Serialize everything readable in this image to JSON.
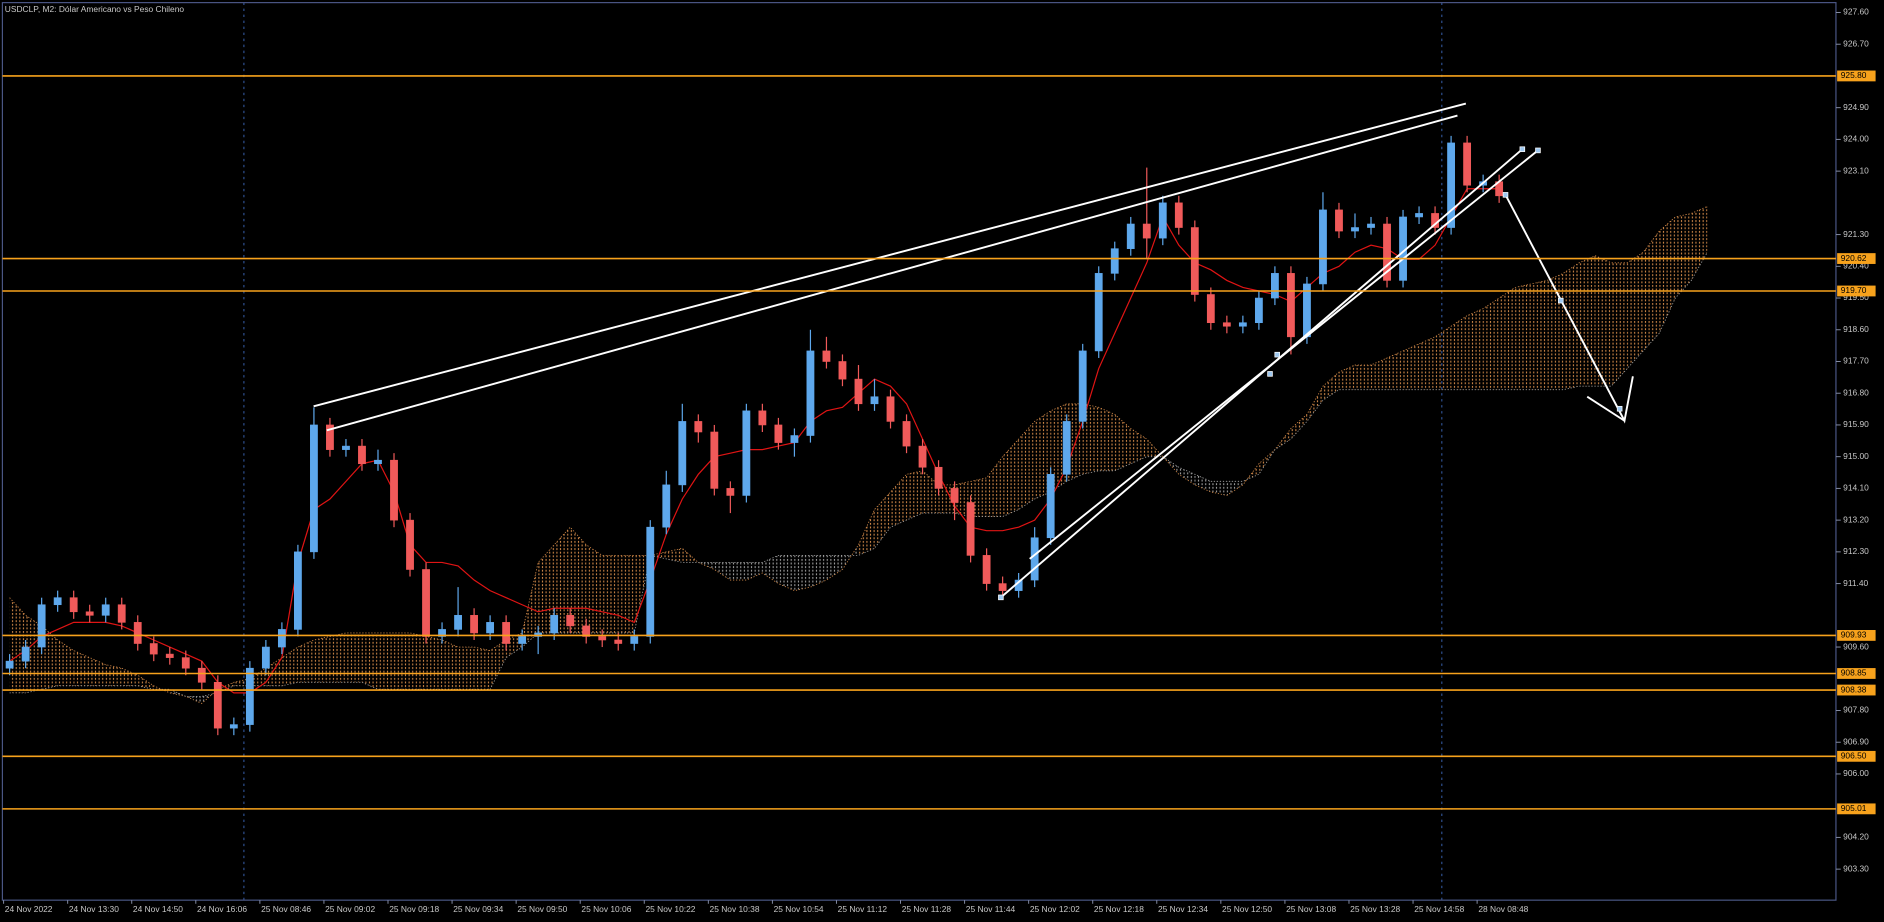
{
  "chart_data": {
    "type": "candlestick",
    "title": "USDCLP, M2:  Dólar Americano vs Peso Chileno",
    "categories": [
      "24 Nov 2022",
      null,
      null,
      null,
      "24 Nov 13:30",
      null,
      null,
      null,
      "24 Nov 14:50",
      null,
      null,
      null,
      "24 Nov 16:06",
      null,
      null,
      null,
      "25 Nov 08:46",
      null,
      null,
      null,
      "25 Nov 09:02",
      null,
      null,
      null,
      "25 Nov 09:18",
      null,
      null,
      null,
      "25 Nov 09:34",
      null,
      null,
      null,
      "25 Nov 09:50",
      null,
      null,
      null,
      "25 Nov 10:06",
      null,
      null,
      null,
      "25 Nov 10:22",
      null,
      null,
      null,
      "25 Nov 10:38",
      null,
      null,
      null,
      "25 Nov 10:54",
      null,
      null,
      null,
      "25 Nov 11:12",
      null,
      null,
      null,
      "25 Nov 11:28",
      null,
      null,
      null,
      "25 Nov 11:44",
      null,
      null,
      null,
      "25 Nov 12:02",
      null,
      null,
      null,
      "25 Nov 12:18",
      null,
      null,
      null,
      "25 Nov 12:34",
      null,
      null,
      null,
      "25 Nov 12:50",
      null,
      null,
      null,
      "25 Nov 13:08",
      null,
      null,
      null,
      "25 Nov 13:28",
      null,
      null,
      null,
      "25 Nov 14:58",
      null,
      null,
      null,
      "28 Nov 08:48",
      null
    ],
    "open": [
      909.0,
      909.2,
      909.6,
      910.8,
      911.0,
      910.6,
      910.5,
      910.8,
      910.3,
      909.7,
      909.4,
      909.3,
      909.0,
      908.6,
      907.3,
      907.4,
      909.0,
      909.6,
      910.1,
      912.3,
      915.9,
      915.2,
      915.3,
      914.8,
      914.9,
      913.2,
      911.8,
      909.9,
      910.1,
      910.5,
      910.0,
      910.3,
      909.7,
      909.9,
      910.0,
      910.5,
      910.2,
      909.9,
      909.8,
      909.7,
      909.9,
      913.0,
      914.2,
      916.0,
      915.7,
      914.1,
      913.9,
      916.3,
      915.9,
      915.4,
      915.6,
      918.0,
      917.7,
      917.2,
      916.5,
      916.7,
      916.0,
      915.3,
      914.7,
      914.1,
      913.7,
      912.2,
      911.4,
      911.2,
      911.5,
      912.7,
      914.5,
      916.0,
      918.0,
      920.2,
      920.9,
      921.6,
      921.2,
      922.2,
      921.5,
      919.6,
      918.8,
      918.7,
      918.8,
      919.5,
      920.2,
      918.4,
      919.9,
      922.0,
      921.4,
      921.5,
      921.6,
      920.0,
      921.8,
      921.9,
      921.5,
      923.9,
      922.7,
      922.8
    ],
    "high": [
      909.4,
      909.8,
      911.0,
      911.2,
      911.2,
      910.8,
      911.0,
      911.0,
      910.5,
      909.9,
      909.6,
      909.5,
      909.2,
      908.8,
      907.6,
      909.2,
      909.8,
      910.3,
      912.5,
      916.4,
      916.1,
      915.5,
      915.5,
      915.2,
      915.1,
      913.4,
      912.0,
      910.3,
      911.3,
      910.7,
      910.5,
      910.5,
      910.1,
      910.2,
      910.7,
      910.7,
      910.4,
      910.1,
      910.0,
      910.1,
      913.2,
      914.6,
      916.5,
      916.2,
      915.9,
      914.3,
      916.5,
      916.5,
      916.1,
      915.8,
      918.6,
      918.4,
      917.9,
      917.6,
      917.2,
      916.9,
      916.2,
      915.5,
      914.9,
      914.3,
      913.9,
      912.4,
      911.6,
      911.7,
      913.0,
      914.7,
      916.2,
      918.2,
      920.4,
      921.1,
      921.8,
      923.2,
      922.4,
      922.4,
      921.7,
      919.8,
      919.0,
      919.0,
      919.7,
      920.4,
      920.4,
      920.1,
      922.5,
      922.2,
      921.9,
      921.8,
      921.8,
      922.0,
      922.1,
      922.1,
      924.1,
      924.1,
      923.0,
      923.0
    ],
    "low": [
      908.8,
      909.0,
      909.4,
      910.6,
      910.4,
      910.3,
      910.3,
      910.1,
      909.5,
      909.2,
      909.1,
      908.8,
      908.4,
      907.1,
      907.1,
      907.2,
      908.8,
      909.4,
      909.9,
      912.1,
      915.0,
      915.0,
      914.6,
      914.6,
      913.0,
      911.6,
      909.7,
      909.7,
      909.9,
      909.8,
      909.8,
      909.5,
      909.5,
      909.4,
      909.8,
      910.0,
      909.7,
      909.6,
      909.5,
      909.5,
      909.7,
      912.8,
      914.0,
      915.4,
      913.9,
      913.4,
      913.7,
      915.7,
      915.2,
      915.0,
      915.4,
      917.5,
      917.0,
      916.3,
      916.3,
      915.8,
      915.1,
      914.5,
      913.9,
      913.2,
      912.0,
      911.2,
      911.0,
      911.0,
      911.3,
      912.5,
      914.3,
      915.8,
      917.8,
      920.0,
      920.7,
      920.6,
      921.0,
      921.3,
      919.4,
      918.6,
      918.5,
      918.5,
      918.6,
      919.3,
      917.9,
      918.2,
      919.7,
      921.2,
      921.2,
      921.3,
      919.8,
      919.8,
      921.6,
      921.3,
      921.3,
      922.5,
      922.5,
      922.2
    ],
    "close": [
      909.2,
      909.6,
      910.8,
      911.0,
      910.6,
      910.5,
      910.8,
      910.3,
      909.7,
      909.4,
      909.3,
      909.0,
      908.6,
      907.3,
      907.4,
      909.0,
      909.6,
      910.1,
      912.3,
      915.9,
      915.2,
      915.3,
      914.8,
      914.9,
      913.2,
      911.8,
      909.9,
      910.1,
      910.5,
      910.0,
      910.3,
      909.7,
      909.9,
      910.0,
      910.5,
      910.2,
      909.9,
      909.8,
      909.7,
      909.9,
      913.0,
      914.2,
      916.0,
      915.7,
      914.1,
      913.9,
      916.3,
      915.9,
      915.4,
      915.6,
      918.0,
      917.7,
      917.2,
      916.5,
      916.7,
      916.0,
      915.3,
      914.7,
      914.1,
      913.7,
      912.2,
      911.4,
      911.2,
      911.5,
      912.7,
      914.5,
      916.0,
      918.0,
      920.2,
      920.9,
      921.6,
      921.2,
      922.2,
      921.5,
      919.6,
      918.8,
      918.7,
      918.8,
      919.5,
      920.2,
      918.4,
      919.9,
      922.0,
      921.4,
      921.5,
      921.6,
      920.0,
      921.8,
      921.9,
      921.5,
      923.9,
      922.7,
      922.8,
      922.4
    ],
    "kijun": [
      909.2,
      909.5,
      909.9,
      910.1,
      910.3,
      910.3,
      910.3,
      910.2,
      910.0,
      909.8,
      909.6,
      909.4,
      909.2,
      908.6,
      908.3,
      908.3,
      908.6,
      909.3,
      912.0,
      913.5,
      913.8,
      914.3,
      914.8,
      914.9,
      914.0,
      912.5,
      912.0,
      912.0,
      911.9,
      911.5,
      911.2,
      911.0,
      910.8,
      910.6,
      910.7,
      910.7,
      910.7,
      910.6,
      910.5,
      910.3,
      911.5,
      912.8,
      913.8,
      914.5,
      915.0,
      915.1,
      915.2,
      915.2,
      915.3,
      915.4,
      916.0,
      916.3,
      916.4,
      916.8,
      917.2,
      917.0,
      916.5,
      915.5,
      914.5,
      913.6,
      913.0,
      912.9,
      912.9,
      913.0,
      913.2,
      913.8,
      914.7,
      916.0,
      917.5,
      918.5,
      919.5,
      920.5,
      921.8,
      921.0,
      920.5,
      920.3,
      920.0,
      919.8,
      919.7,
      919.6,
      919.4,
      919.8,
      920.2,
      920.4,
      920.8,
      921.0,
      920.9,
      920.6,
      920.6,
      921.0,
      921.8,
      922.6,
      922.6,
      922.6
    ],
    "cloud_a": [
      911.0,
      910.5,
      910.2,
      909.8,
      909.5,
      909.3,
      909.1,
      909.0,
      908.8,
      908.5,
      908.3,
      908.2,
      908.0,
      908.4,
      908.6,
      908.7,
      909.0,
      909.3,
      909.6,
      909.8,
      909.9,
      910.0,
      910.0,
      910.0,
      910.0,
      910.0,
      909.9,
      909.8,
      909.6,
      909.6,
      909.5,
      909.8,
      910.0,
      912.0,
      912.5,
      913.0,
      912.5,
      912.2,
      912.2,
      912.2,
      912.2,
      912.3,
      912.4,
      912.0,
      911.8,
      911.5,
      911.5,
      911.7,
      911.4,
      911.2,
      911.3,
      911.5,
      911.8,
      912.5,
      913.5,
      914.0,
      914.5,
      914.6,
      914.2,
      914.2,
      914.3,
      914.4,
      915.0,
      915.5,
      916.0,
      916.3,
      916.5,
      916.5,
      916.4,
      916.2,
      915.8,
      915.5,
      915.0,
      914.5,
      914.2,
      914.0,
      913.9,
      914.2,
      914.8,
      915.2,
      915.8,
      916.2,
      917.0,
      917.4,
      917.6,
      917.6,
      917.8,
      918.0,
      918.2,
      918.4,
      918.7,
      919.0,
      919.2,
      919.5,
      919.8,
      919.9,
      920.0,
      920.2,
      920.5,
      920.7,
      920.5,
      920.5,
      920.8,
      921.4,
      921.8,
      921.9,
      922.1
    ],
    "cloud_b": [
      908.3,
      908.3,
      908.4,
      908.5,
      908.5,
      908.5,
      908.5,
      908.5,
      908.5,
      908.4,
      908.4,
      908.2,
      908.2,
      908.3,
      908.5,
      908.5,
      908.5,
      908.5,
      908.6,
      908.6,
      908.6,
      908.6,
      908.6,
      908.4,
      908.4,
      908.4,
      908.4,
      908.4,
      908.4,
      908.4,
      908.4,
      909.3,
      909.6,
      910.0,
      910.0,
      910.0,
      910.0,
      910.0,
      910.0,
      910.0,
      912.2,
      912.1,
      912.0,
      912.0,
      912.0,
      912.0,
      912.0,
      912.0,
      912.2,
      912.2,
      912.2,
      912.2,
      912.2,
      912.2,
      912.4,
      913.0,
      913.2,
      913.4,
      913.4,
      913.4,
      913.3,
      913.3,
      913.3,
      913.5,
      913.8,
      914.0,
      914.3,
      914.5,
      914.6,
      914.6,
      914.8,
      915.0,
      915.0,
      914.7,
      914.5,
      914.3,
      914.3,
      914.3,
      914.5,
      915.2,
      915.5,
      916.0,
      916.6,
      916.9,
      916.9,
      916.9,
      916.9,
      916.9,
      916.9,
      916.9,
      916.9,
      916.9,
      916.9,
      916.9,
      916.9,
      916.9,
      916.9,
      916.9,
      917.0,
      917.0,
      917.0,
      917.5,
      918.0,
      918.5,
      919.5,
      920.0,
      920.8
    ],
    "up_color": "#5ea8ec",
    "down_color": "#f05a5a",
    "doji_color": "#ffffff",
    "kijun_color": "#e01414",
    "cloud_up_color": "#d08848",
    "cloud_down_color": "#a0a0a0",
    "level_color": "#f7a21c",
    "levels": [
      {
        "value": 925.8,
        "label": "925.80"
      },
      {
        "value": 920.62,
        "label": "920.62"
      },
      {
        "value": 919.7,
        "label": "919.70"
      },
      {
        "value": 909.93,
        "label": "909.93"
      },
      {
        "value": 908.85,
        "label": "908.85"
      },
      {
        "value": 908.38,
        "label": "908.38"
      },
      {
        "value": 906.5,
        "label": "906.50"
      },
      {
        "value": 905.01,
        "label": "905.01"
      }
    ],
    "ylim": [
      902.42,
      927.88
    ],
    "yticks": [
      {
        "value": 927.6,
        "label": "927.60"
      },
      {
        "value": 926.7,
        "label": "926.70"
      },
      {
        "value": 924.9,
        "label": "924.90"
      },
      {
        "value": 924.0,
        "label": "924.00"
      },
      {
        "value": 923.1,
        "label": "923.10"
      },
      {
        "value": 921.3,
        "label": "921.30"
      },
      {
        "value": 920.4,
        "label": "920.40"
      },
      {
        "value": 919.5,
        "label": "919.50"
      },
      {
        "value": 918.6,
        "label": "918.60"
      },
      {
        "value": 917.7,
        "label": "917.70"
      },
      {
        "value": 916.8,
        "label": "916.80"
      },
      {
        "value": 915.9,
        "label": "915.90"
      },
      {
        "value": 915.0,
        "label": "915.00"
      },
      {
        "value": 914.1,
        "label": "914.10"
      },
      {
        "value": 913.2,
        "label": "913.20"
      },
      {
        "value": 912.3,
        "label": "912.30"
      },
      {
        "value": 911.4,
        "label": "911.40"
      },
      {
        "value": 909.6,
        "label": "909.60"
      },
      {
        "value": 907.8,
        "label": "907.80"
      },
      {
        "value": 906.9,
        "label": "906.90"
      },
      {
        "value": 906.0,
        "label": "906.00"
      },
      {
        "value": 904.2,
        "label": "904.20"
      },
      {
        "value": 903.3,
        "label": "903.30"
      }
    ]
  }
}
